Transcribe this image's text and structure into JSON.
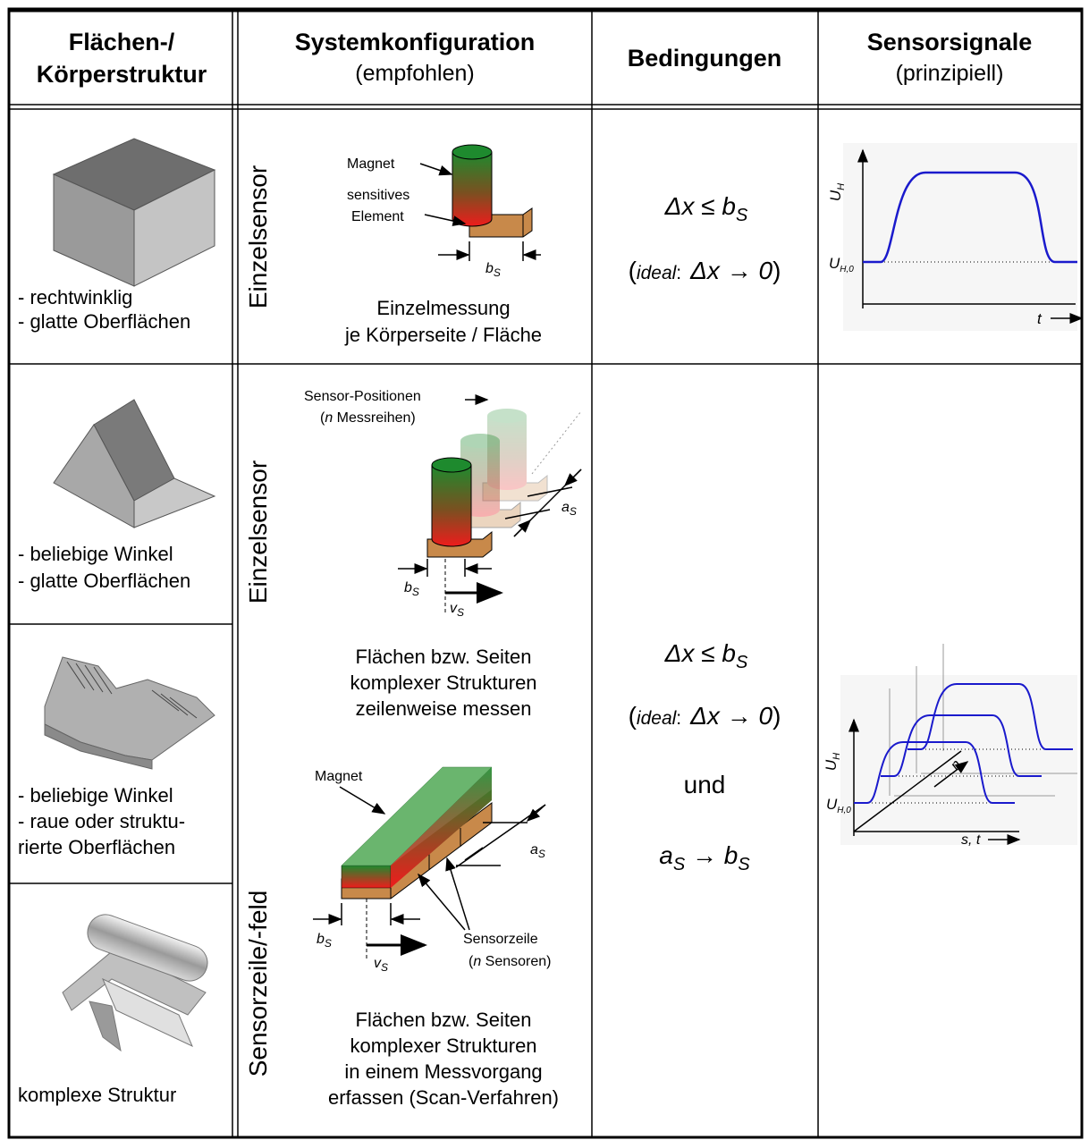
{
  "header": [
    {
      "lines": [
        "Flächen-/",
        "Körperstruktur"
      ]
    },
    {
      "title": "Systemkonfiguration",
      "note": "(empfohlen)"
    },
    {
      "title": "Bedingungen"
    },
    {
      "title": "Sensorsignale",
      "note": "(prinzipiell)"
    }
  ],
  "structures": [
    {
      "lines": [
        "- rechtwinklig",
        "- glatte Oberflächen"
      ]
    },
    {
      "lines": [
        "- beliebige Winkel",
        "- glatte Oberflächen"
      ]
    },
    {
      "lines": [
        "- beliebige Winkel",
        "- raue oder struktu-",
        "  rierte Oberflächen"
      ]
    },
    {
      "lines": [
        "komplexe Struktur"
      ]
    }
  ],
  "configs": [
    {
      "mode": "Einzelsensor",
      "labels": {
        "magnet": "Magnet",
        "element": [
          "sensitives",
          "Element"
        ],
        "width": "b",
        "sub": "S"
      },
      "caption": [
        "Einzelmessung",
        "je Körperseite / Fläche"
      ]
    },
    {
      "mode": "Einzelsensor",
      "labels": {
        "positions": "Sensor-Positionen",
        "rows": [
          "(",
          "n",
          " Messreihen)"
        ],
        "spacing": "a",
        "width": "b",
        "speed": "v",
        "sub": "S"
      },
      "caption": [
        "Flächen bzw. Seiten",
        "komplexer Strukturen",
        "zeilenweise messen"
      ]
    },
    {
      "mode": "Sensorzeile/-feld",
      "labels": {
        "magnet": "Magnet",
        "spacing": "a",
        "width": "b",
        "speed": "v",
        "sub": "S",
        "line": "Sensorzeile",
        "count": [
          "(",
          "n",
          " Sensoren)"
        ]
      },
      "caption": [
        "Flächen bzw. Seiten",
        "komplexer Strukturen",
        "in einem Messvorgang",
        "erfassen (Scan-Verfahren)"
      ]
    }
  ],
  "conditions": [
    {
      "expr": [
        "Δx ≤ b",
        "S"
      ],
      "ideal": [
        "(",
        "ideal",
        ":",
        "Δx → 0",
        ")"
      ]
    },
    {
      "expr": [
        "Δx ≤ b",
        "S"
      ],
      "ideal": [
        "(",
        "ideal",
        ":",
        "Δx → 0",
        ")"
      ],
      "and": "und",
      "limit": [
        "a",
        "S",
        " → b",
        "S"
      ]
    }
  ],
  "signals": [
    {
      "y": "U",
      "y_sub": "H",
      "base_sub": "H,0",
      "x": "t"
    },
    {
      "y": "U",
      "y_sub": "H",
      "base_sub": "H,0",
      "x": "s, t",
      "n": "n"
    }
  ]
}
